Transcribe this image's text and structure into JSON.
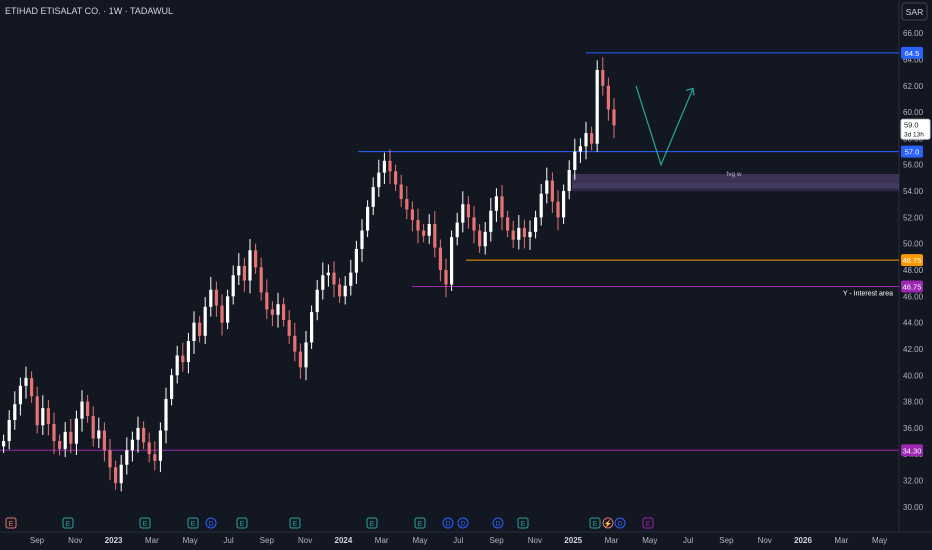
{
  "header": {
    "symbol_title": "ETIHAD ETISALAT CO. · 1W · TADAWUL",
    "currency": "SAR"
  },
  "colors": {
    "background": "#131722",
    "axis_text": "#b2b5be",
    "up_candle": "#ffffff",
    "down_candle": "#e57373",
    "blue_line": "#2962ff",
    "orange_line": "#ff9800",
    "purple_line": "#9c27b0",
    "fvg_zone": "#5b4a7a",
    "arrow": "#26a69a",
    "current_price_bg": "#ffffff"
  },
  "chart_data": {
    "type": "candlestick",
    "title": "ETIHAD ETISALAT CO. · 1W · TADAWUL",
    "ylim": [
      29,
      67
    ],
    "y_ticks": [
      30,
      32,
      34,
      36,
      38,
      40,
      42,
      44,
      46,
      48,
      50,
      52,
      54,
      56,
      58,
      60,
      62,
      64,
      66
    ],
    "y_tick_labels": [
      "30.00",
      "32.00",
      "34.00",
      "36.00",
      "38.00",
      "40.00",
      "42.00",
      "44.00",
      "46.00",
      "48.00",
      "50.00",
      "52.00",
      "54.00",
      "56.00",
      "58.00",
      "60.00",
      "62.00",
      "64.00",
      "66.00"
    ],
    "x_tick_labels": [
      "Sep",
      "Nov",
      "2023",
      "Mar",
      "May",
      "Jul",
      "Sep",
      "Nov",
      "2024",
      "Mar",
      "May",
      "Jul",
      "Sep",
      "Nov",
      "2025",
      "Mar",
      "May",
      "Jul",
      "Sep",
      "Nov",
      "2026",
      "Mar",
      "May"
    ],
    "x_tick_bold": [
      "2023",
      "2024",
      "2025",
      "2026"
    ],
    "candle_closes": [
      35.0,
      36.6,
      37.8,
      39.2,
      39.8,
      38.4,
      36.2,
      37.5,
      36.3,
      35.0,
      34.4,
      35.7,
      34.8,
      36.7,
      38.0,
      36.9,
      35.2,
      35.8,
      34.3,
      33.0,
      31.8,
      33.2,
      34.3,
      35.1,
      36.0,
      34.9,
      34.0,
      33.5,
      35.8,
      38.2,
      40.0,
      41.5,
      41.0,
      42.6,
      44.0,
      43.0,
      45.2,
      46.5,
      45.3,
      44.0,
      46.0,
      47.6,
      48.3,
      47.2,
      49.5,
      48.2,
      46.3,
      45.0,
      44.6,
      45.4,
      44.2,
      43.0,
      41.8,
      40.6,
      42.5,
      44.8,
      46.5,
      47.6,
      47.8,
      46.9,
      46.0,
      46.8,
      47.8,
      49.6,
      51.0,
      52.8,
      54.3,
      55.4,
      56.3,
      55.5,
      54.5,
      53.4,
      52.6,
      51.8,
      51.0,
      50.6,
      51.5,
      49.7,
      48.0,
      46.9,
      50.5,
      51.6,
      53.0,
      52.0,
      51.0,
      49.8,
      50.9,
      52.5,
      53.6,
      52.0,
      51.0,
      50.3,
      51.2,
      50.5,
      50.9,
      52.0,
      53.8,
      54.8,
      53.2,
      52.0,
      54.0,
      55.6,
      57.0,
      57.4,
      58.4,
      57.6,
      63.2,
      62.0,
      60.2,
      59.0
    ],
    "last_close": 59.0,
    "levels": [
      {
        "price": 64.5,
        "label": "64.5",
        "color": "#2962ff"
      },
      {
        "price": 57.0,
        "label": "57.0",
        "color": "#2962ff"
      },
      {
        "price": 48.75,
        "label": "48.75",
        "color": "#ff9800"
      },
      {
        "price": 46.75,
        "label": "46.75",
        "color": "#9c27b0"
      },
      {
        "price": 34.3,
        "label": "34.30",
        "color": "#9c27b0"
      }
    ],
    "fvg_zone": {
      "label": "fvg w",
      "price_top": 55.3,
      "price_bottom": 54.2
    },
    "interest_area_label": "Y - Interest area",
    "projection_arrow": {
      "prices": [
        62.0,
        56.0,
        61.8
      ]
    },
    "current_price_label": "59.0",
    "countdown_label": "3d 13h",
    "event_badges": [
      "E",
      "E",
      "E",
      "E",
      "D",
      "E",
      "E",
      "E",
      "E",
      "D",
      "D",
      "D",
      "E",
      "E",
      "⚡",
      "D",
      "E"
    ]
  }
}
